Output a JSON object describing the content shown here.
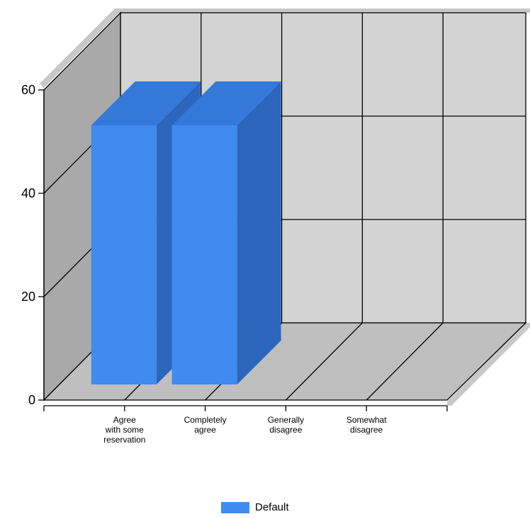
{
  "chart_data": {
    "type": "bar",
    "style": "3d",
    "categories": [
      "Agree with some reservation",
      "Completely agree",
      "Generally disagree",
      "Somewhat disagree"
    ],
    "category_label_lines": [
      [
        "Agree",
        "with some",
        "reservation"
      ],
      [
        "Completely",
        "agree"
      ],
      [
        "Generally",
        "disagree"
      ],
      [
        "Somewhat",
        "disagree"
      ]
    ],
    "series": [
      {
        "name": "Default",
        "values": [
          50,
          50,
          0,
          0
        ]
      }
    ],
    "ylim": [
      0,
      60
    ],
    "yticks": [
      0,
      20,
      40,
      60
    ],
    "ytick_labels": [
      "0",
      "20",
      "40",
      "60"
    ],
    "grid": true,
    "legend_position": "bottom-center",
    "title": "",
    "xlabel": "",
    "ylabel": ""
  },
  "colors": {
    "bar_front": "#3f8bef",
    "bar_top": "#3478d9",
    "bar_side": "#2c66bd",
    "back_wall": "#d3d3d3",
    "side_wall": "#a9a9a9",
    "floor": "#bfbfbf",
    "wall_shadow": "#c9c9c9"
  }
}
